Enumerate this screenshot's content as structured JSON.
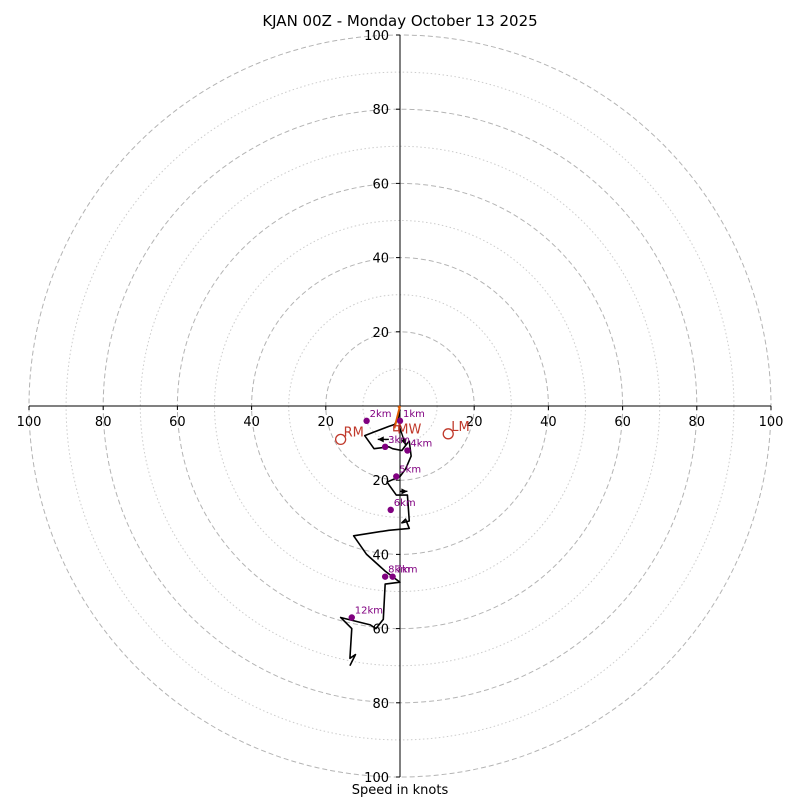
{
  "chart_data": {
    "type": "hodograph",
    "title": "KJAN 00Z - Monday October 13 2025",
    "xlabel": "Speed in knots",
    "units": "knots",
    "rings": {
      "dashed": [
        20,
        40,
        60,
        80,
        100
      ],
      "dotted": [
        10,
        30,
        50,
        70,
        90
      ]
    },
    "tick_labels": {
      "x": [
        "100",
        "80",
        "60",
        "40",
        "20",
        "20",
        "40",
        "60",
        "80",
        "100"
      ],
      "x_values": [
        -100,
        -80,
        -60,
        -40,
        -20,
        20,
        40,
        60,
        80,
        100
      ],
      "y": [
        "100",
        "80",
        "60",
        "40",
        "20",
        "20",
        "40",
        "60",
        "80",
        "100"
      ],
      "y_values": [
        100,
        80,
        60,
        40,
        20,
        -20,
        -40,
        -60,
        -80,
        -100
      ]
    },
    "hodograph_line": {
      "u": [
        0,
        -0.5,
        -1.5,
        -3,
        -7,
        -9.5,
        -7,
        -3,
        -2,
        0.5,
        2,
        2.5,
        3,
        1.5,
        0,
        -3.5,
        -1,
        2,
        2.5,
        0.5,
        1.5,
        2.5,
        -3,
        -12.5,
        -9,
        -4,
        0,
        -4,
        -4.5,
        -6.5,
        -8,
        -16,
        -13,
        -13.5,
        -12,
        -13.5
      ],
      "v": [
        -1,
        -3.5,
        -5,
        -5.5,
        -7,
        -8,
        -11.5,
        -11,
        -11.5,
        -12,
        -10,
        -9.5,
        -13.5,
        -17,
        -19,
        -20.5,
        -24,
        -24,
        -31,
        -31.5,
        -30.5,
        -33,
        -33.5,
        -35,
        -40,
        -44.5,
        -47.5,
        -48,
        -57.5,
        -60,
        -59,
        -57,
        -60,
        -68,
        -67,
        -70
      ]
    },
    "points": [
      {
        "label": "1km",
        "u": 0,
        "v": -4
      },
      {
        "label": "2km",
        "u": -9,
        "v": -4
      },
      {
        "label": "3km",
        "u": -4,
        "v": -11
      },
      {
        "label": "4km",
        "u": 2,
        "v": -12
      },
      {
        "label": "5km",
        "u": -1,
        "v": -19
      },
      {
        "label": "6km",
        "u": -2.5,
        "v": -28
      },
      {
        "label": "7km",
        "u": -2,
        "v": -46
      },
      {
        "label": "8km",
        "u": -4,
        "v": -46
      },
      {
        "label": "12km",
        "u": -13,
        "v": -57
      }
    ],
    "motions": [
      {
        "label": "RM",
        "u": -16,
        "v": -9
      },
      {
        "label": "LM",
        "u": 13,
        "v": -7.5
      },
      {
        "label": "MW",
        "u": -1,
        "v": -6
      }
    ],
    "arrows": [
      {
        "from_u": 0,
        "from_v": -6,
        "to_u": 1.5,
        "to_v": -10.5
      },
      {
        "from_u": -3,
        "from_v": -9,
        "to_u": -6,
        "to_v": -9
      },
      {
        "from_u": 0,
        "from_v": -23,
        "to_u": 2,
        "to_v": -23
      }
    ],
    "storm_vectors": [
      {
        "to_u": -0.5,
        "to_v": -0.5
      },
      {
        "to_u": -1.5,
        "to_v": -6
      }
    ]
  }
}
